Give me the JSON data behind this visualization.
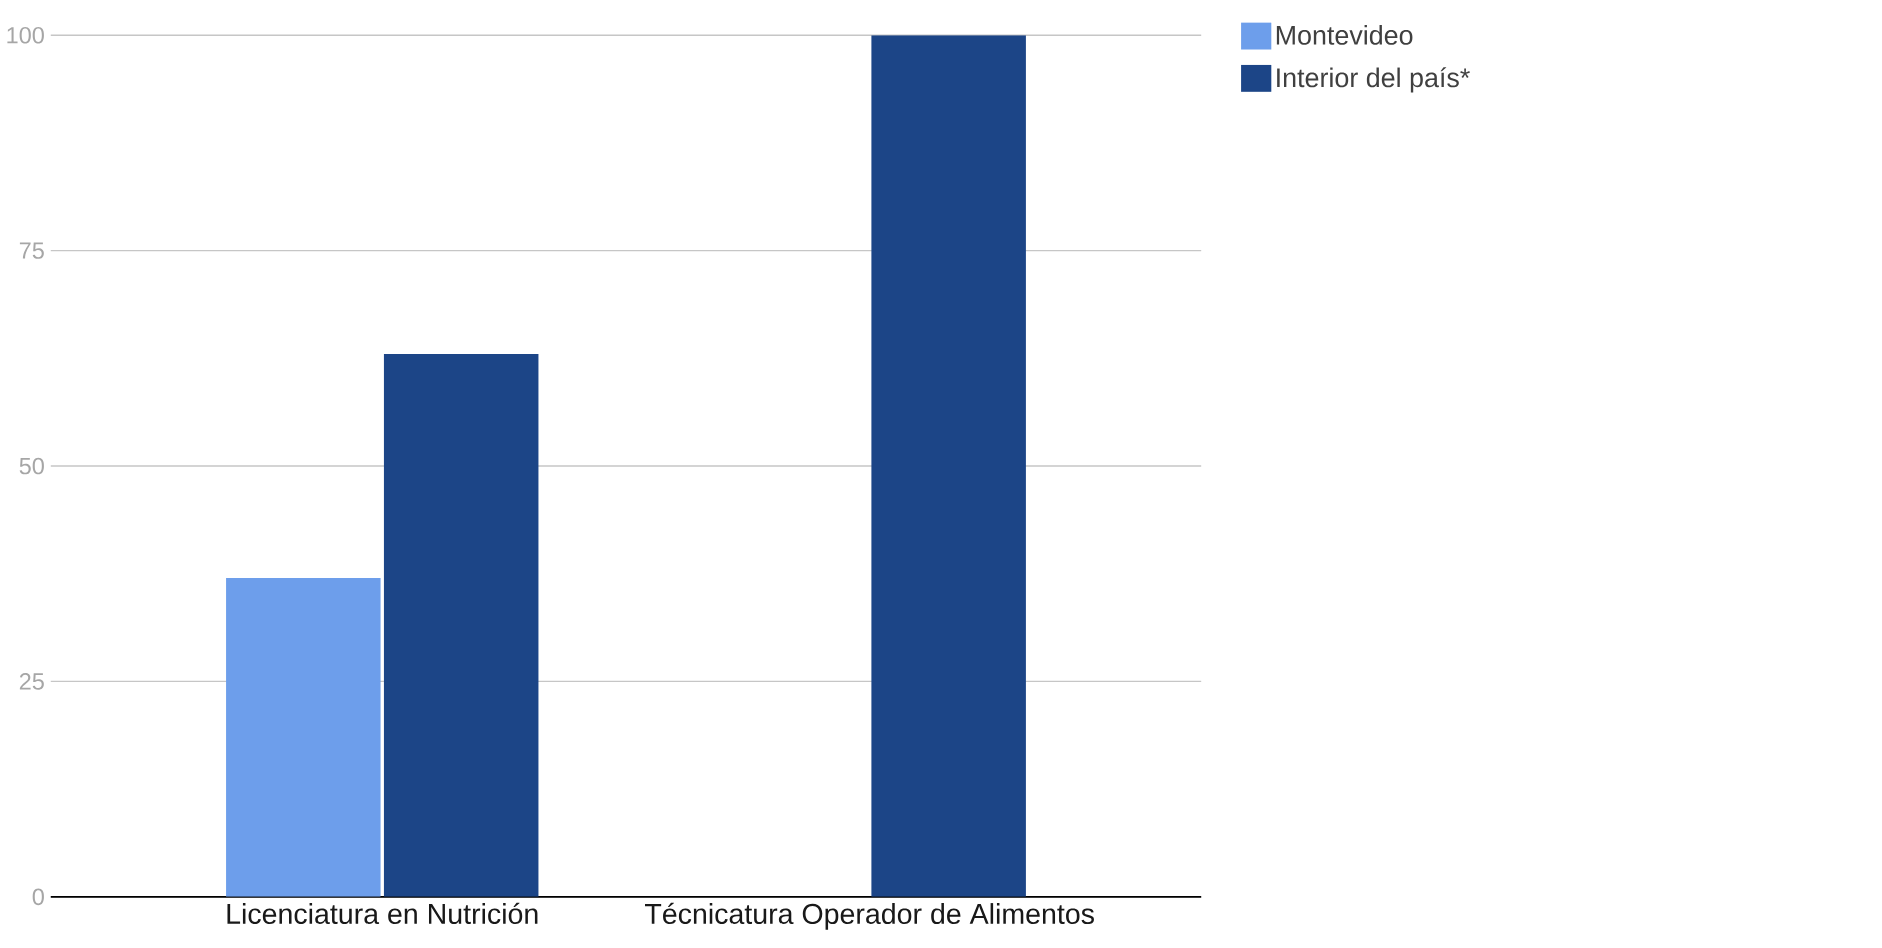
{
  "chart_data": {
    "type": "bar",
    "categories": [
      "Licenciatura en Nutrición",
      "Técnicatura Operador de Alimentos"
    ],
    "series": [
      {
        "name": "Montevideo",
        "color": "#6d9eeb",
        "values": [
          37,
          0
        ]
      },
      {
        "name": "Interior del país*",
        "color": "#1c4587",
        "values": [
          63,
          100
        ]
      }
    ],
    "ylim": [
      0,
      100
    ],
    "yticks": [
      0,
      25,
      50,
      75,
      100
    ],
    "grid": "y",
    "legend": "top right"
  }
}
